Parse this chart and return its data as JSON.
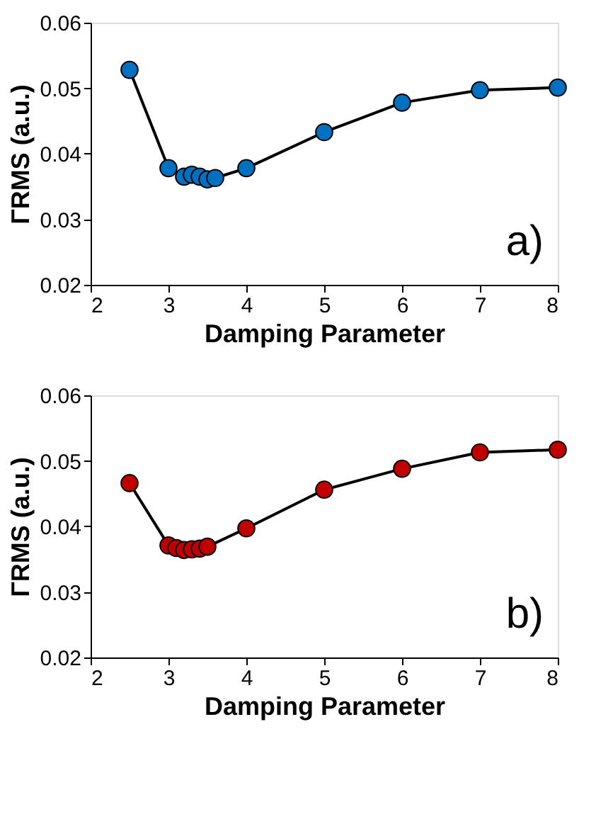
{
  "chart_data": [
    {
      "type": "line",
      "xlabel": "Damping Parameter",
      "ylabel": "ΓRMS (a.u.)",
      "annotations": [
        "a)"
      ],
      "x": [
        2.5,
        3,
        3.2,
        3.3,
        3.4,
        3.5,
        3.6,
        4,
        5,
        6,
        7,
        8
      ],
      "series": [
        {
          "color": "#0070c0",
          "values": [
            0.0528,
            0.0378,
            0.0365,
            0.0368,
            0.0365,
            0.0361,
            0.0363,
            0.0378,
            0.0433,
            0.0478,
            0.0497,
            0.0501
          ]
        }
      ],
      "xlim": [
        2,
        8
      ],
      "xticks": [
        2,
        3,
        4,
        5,
        6,
        7,
        8
      ],
      "ylim": [
        0.02,
        0.06
      ],
      "yticks": [
        0.02,
        0.03,
        0.04,
        0.05,
        0.06
      ],
      "grid": false,
      "marker": "circle",
      "line_style": "solid"
    },
    {
      "type": "line",
      "xlabel": "Damping Parameter",
      "ylabel": "ΓRMS (a.u.)",
      "annotations": [
        "b)"
      ],
      "x": [
        2.5,
        3,
        3.1,
        3.2,
        3.3,
        3.4,
        3.5,
        4,
        5,
        6,
        7,
        8
      ],
      "series": [
        {
          "color": "#c00000",
          "values": [
            0.0466,
            0.0371,
            0.0367,
            0.0364,
            0.0365,
            0.0366,
            0.0369,
            0.0397,
            0.0456,
            0.0488,
            0.0513,
            0.0517
          ]
        }
      ],
      "xlim": [
        2,
        8
      ],
      "xticks": [
        2,
        3,
        4,
        5,
        6,
        7,
        8
      ],
      "ylim": [
        0.02,
        0.06
      ],
      "yticks": [
        0.02,
        0.03,
        0.04,
        0.05,
        0.06
      ],
      "grid": false,
      "marker": "circle",
      "line_style": "solid"
    }
  ]
}
